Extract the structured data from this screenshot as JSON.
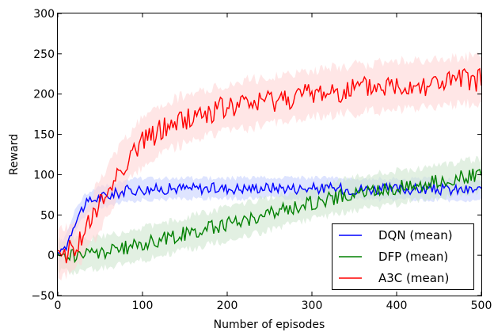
{
  "chart_data": {
    "type": "line",
    "xlabel": "Number of episodes",
    "ylabel": "Reward",
    "xlim": [
      0,
      500
    ],
    "ylim": [
      -50,
      300
    ],
    "xticks": [
      0,
      100,
      200,
      300,
      400,
      500
    ],
    "yticks": [
      -50,
      0,
      50,
      100,
      150,
      200,
      250,
      300
    ],
    "grid": false,
    "legend_position": "lower-right",
    "series": [
      {
        "name": "DQN (mean)",
        "color": "#0000ff",
        "band_color": "#c8d2ff",
        "x": [
          0,
          10,
          20,
          30,
          40,
          50,
          60,
          70,
          80,
          90,
          100,
          120,
          140,
          160,
          180,
          200,
          220,
          240,
          260,
          280,
          300,
          320,
          340,
          360,
          380,
          400,
          420,
          440,
          460,
          480,
          500
        ],
        "y": [
          2,
          12,
          42,
          60,
          68,
          72,
          74,
          77,
          80,
          81,
          82,
          82,
          83,
          83,
          83,
          83,
          83,
          84,
          84,
          83,
          83,
          83,
          82,
          82,
          82,
          82,
          82,
          82,
          81,
          81,
          81
        ]
      },
      {
        "name": "DFP (mean)",
        "color": "#008000",
        "band_color": "#cfe6cf",
        "x": [
          0,
          20,
          40,
          60,
          80,
          100,
          120,
          140,
          160,
          180,
          200,
          220,
          240,
          260,
          280,
          300,
          320,
          340,
          360,
          380,
          400,
          420,
          440,
          460,
          480,
          500
        ],
        "y": [
          0,
          0,
          2,
          5,
          9,
          14,
          19,
          24,
          29,
          34,
          39,
          44,
          49,
          54,
          60,
          65,
          70,
          74,
          78,
          81,
          84,
          87,
          90,
          93,
          97,
          100
        ]
      },
      {
        "name": "A3C (mean)",
        "color": "#ff0000",
        "band_color": "#ffd6d6",
        "x": [
          0,
          10,
          20,
          30,
          40,
          50,
          60,
          70,
          80,
          90,
          100,
          120,
          140,
          160,
          180,
          200,
          220,
          240,
          260,
          280,
          300,
          320,
          340,
          360,
          380,
          400,
          420,
          440,
          460,
          480,
          500
        ],
        "y": [
          2,
          5,
          12,
          25,
          45,
          62,
          82,
          100,
          115,
          130,
          140,
          155,
          165,
          172,
          178,
          183,
          187,
          190,
          194,
          197,
          200,
          203,
          205,
          207,
          209,
          211,
          212,
          213,
          215,
          217,
          218
        ]
      }
    ]
  }
}
